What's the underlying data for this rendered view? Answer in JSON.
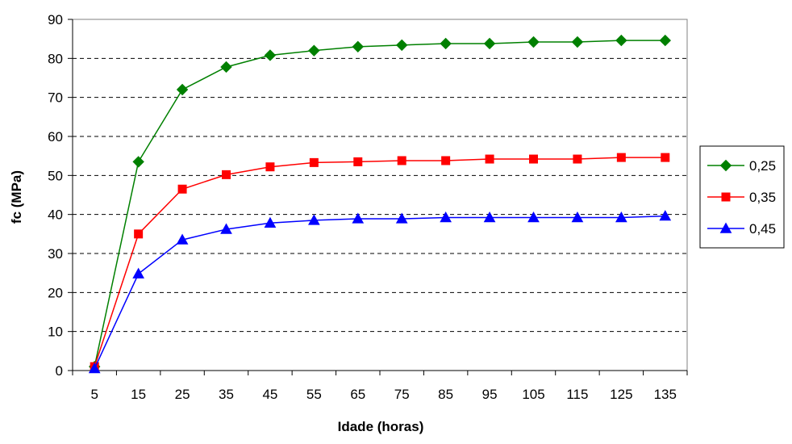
{
  "chart_data": {
    "type": "line",
    "title": "",
    "xlabel": "Idade (horas)",
    "ylabel": "fc (MPa)",
    "ylim": [
      0,
      90
    ],
    "y_ticks": [
      0,
      10,
      20,
      30,
      40,
      50,
      60,
      70,
      80,
      90
    ],
    "categories": [
      "5",
      "15",
      "25",
      "35",
      "45",
      "55",
      "65",
      "75",
      "85",
      "95",
      "105",
      "115",
      "125",
      "135"
    ],
    "grid": "horizontal-dashed",
    "legend_position": "right",
    "series": [
      {
        "name": "0,25",
        "color": "#008000",
        "marker": "diamond",
        "values": [
          1,
          53.5,
          72,
          77.8,
          80.8,
          82,
          83,
          83.4,
          83.8,
          83.8,
          84.2,
          84.2,
          84.6,
          84.6
        ]
      },
      {
        "name": "0,35",
        "color": "#ff0000",
        "marker": "square",
        "values": [
          1,
          35,
          46.5,
          50.2,
          52.2,
          53.3,
          53.5,
          53.8,
          53.8,
          54.2,
          54.2,
          54.2,
          54.6,
          54.6
        ]
      },
      {
        "name": "0,45",
        "color": "#0000ff",
        "marker": "triangle",
        "values": [
          0.5,
          24.8,
          33.5,
          36.2,
          37.8,
          38.5,
          38.9,
          38.9,
          39.2,
          39.2,
          39.2,
          39.2,
          39.2,
          39.6
        ]
      }
    ]
  }
}
